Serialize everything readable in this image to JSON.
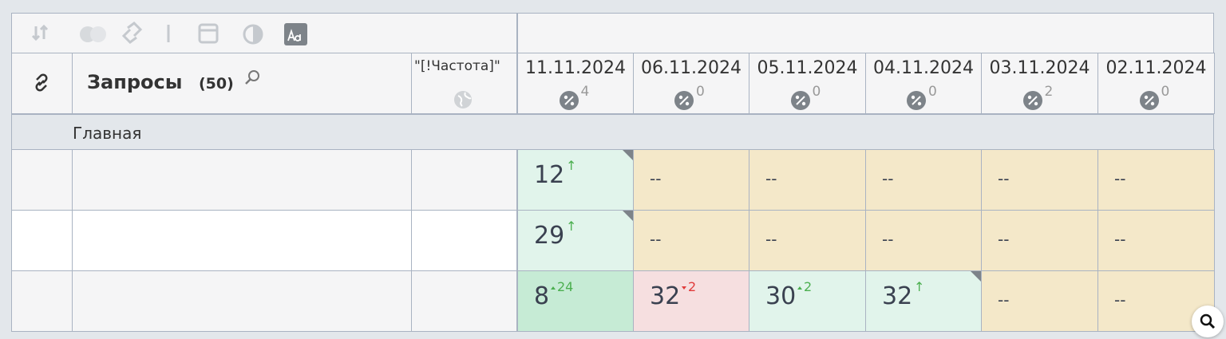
{
  "header": {
    "query_title": "Запросы",
    "query_count": "(50)",
    "frequency": "\"[!Частота]\""
  },
  "dates": [
    {
      "date": "11.11.2024",
      "percent_count": "4"
    },
    {
      "date": "06.11.2024",
      "percent_count": "0"
    },
    {
      "date": "05.11.2024",
      "percent_count": "0"
    },
    {
      "date": "04.11.2024",
      "percent_count": "0"
    },
    {
      "date": "03.11.2024",
      "percent_count": "2"
    },
    {
      "date": "02.11.2024",
      "percent_count": "0"
    }
  ],
  "group": "Главная",
  "rows": [
    {
      "cells": [
        {
          "value": "12",
          "change": "↑",
          "trend": "new",
          "color": "#e1f4eb",
          "corner": true
        },
        {
          "value": "--",
          "color": "#f4e8c9"
        },
        {
          "value": "--",
          "color": "#f4e8c9"
        },
        {
          "value": "--",
          "color": "#f4e8c9"
        },
        {
          "value": "--",
          "color": "#f4e8c9"
        },
        {
          "value": "--",
          "color": "#f4e8c9"
        }
      ]
    },
    {
      "cells": [
        {
          "value": "29",
          "change": "↑",
          "trend": "new",
          "color": "#e1f4eb",
          "corner": true
        },
        {
          "value": "--",
          "color": "#f4e8c9"
        },
        {
          "value": "--",
          "color": "#f4e8c9"
        },
        {
          "value": "--",
          "color": "#f4e8c9"
        },
        {
          "value": "--",
          "color": "#f4e8c9"
        },
        {
          "value": "--",
          "color": "#f4e8c9"
        }
      ]
    },
    {
      "cells": [
        {
          "value": "8",
          "change": "24",
          "trend": "up",
          "color": "#c6ebd5"
        },
        {
          "value": "32",
          "change": "2",
          "trend": "down",
          "color": "#f6dfe0"
        },
        {
          "value": "30",
          "change": "2",
          "trend": "up",
          "color": "#e1f4eb"
        },
        {
          "value": "32",
          "change": "↑",
          "trend": "new",
          "color": "#e1f4eb",
          "corner": true
        },
        {
          "value": "--",
          "color": "#f4e8c9"
        },
        {
          "value": "--",
          "color": "#f4e8c9"
        }
      ]
    }
  ]
}
